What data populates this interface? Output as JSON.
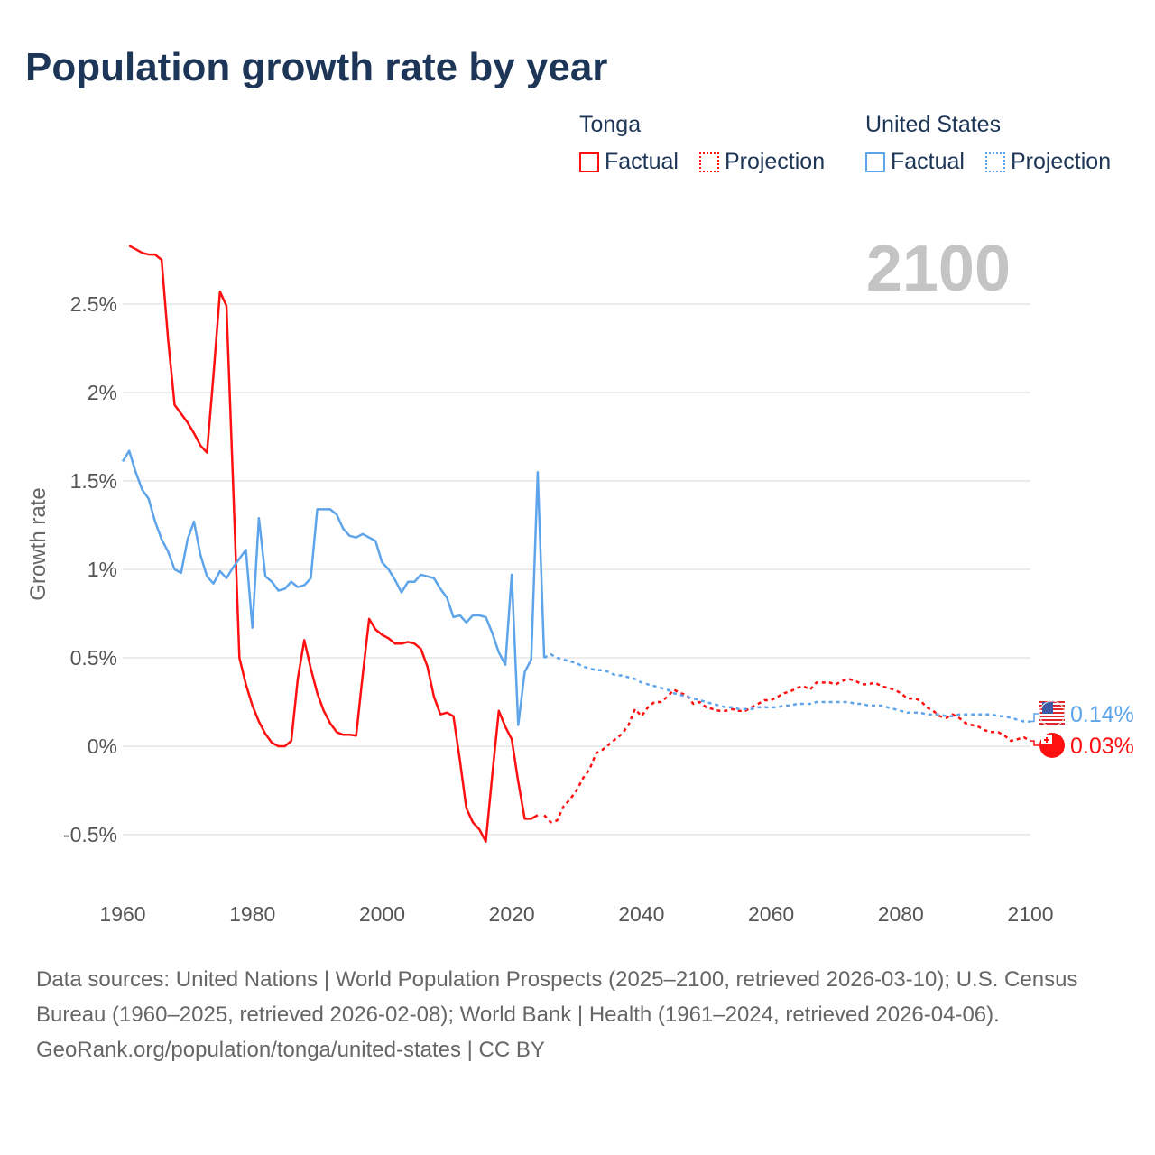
{
  "title": "Population growth rate by year",
  "legend": {
    "groups": [
      {
        "name": "Tonga",
        "color": "#ff1010",
        "factual": "Factual",
        "projection": "Projection"
      },
      {
        "name": "United States",
        "color": "#5ea4ea",
        "factual": "Factual",
        "projection": "Projection"
      }
    ]
  },
  "year_label": "2100",
  "footer": {
    "sources": "Data sources: United Nations | World Population Prospects (2025–2100, retrieved 2026-03-10); U.S. Census Bureau (1960–2025, retrieved 2026-02-08); World Bank | Health (1961–2024, retrieved 2026-04-06).",
    "credit": "GeoRank.org/population/tonga/united-states | CC BY"
  },
  "chart_data": {
    "type": "line",
    "title": "Population growth rate by year",
    "xlabel": "",
    "ylabel": "Growth rate",
    "xlim": [
      1960,
      2100
    ],
    "ylim": [
      -0.7,
      2.9
    ],
    "xticks": [
      1960,
      1980,
      2000,
      2020,
      2040,
      2060,
      2080,
      2100
    ],
    "yticks": [
      -0.5,
      0,
      0.5,
      1,
      1.5,
      2,
      2.5
    ],
    "ytick_labels": [
      "-0.5%",
      "0%",
      "0.5%",
      "1%",
      "1.5%",
      "2%",
      "2.5%"
    ],
    "grid": true,
    "legend_position": "top-right",
    "series": [
      {
        "name": "Tonga Factual",
        "country": "Tonga",
        "color": "#ff1010",
        "dashed": false,
        "x_start": 1961,
        "values": [
          2.83,
          2.81,
          2.79,
          2.78,
          2.78,
          2.75,
          2.3,
          1.93,
          1.88,
          1.83,
          1.77,
          1.7,
          1.66,
          2.1,
          2.57,
          2.49,
          1.5,
          0.5,
          0.35,
          0.23,
          0.14,
          0.07,
          0.02,
          0.0,
          0.0,
          0.03,
          0.38,
          0.6,
          0.44,
          0.3,
          0.2,
          0.13,
          0.08,
          0.065,
          0.065,
          0.06,
          0.4,
          0.72,
          0.66,
          0.63,
          0.61,
          0.58,
          0.58,
          0.59,
          0.58,
          0.55,
          0.45,
          0.28,
          0.18,
          0.19,
          0.17,
          -0.08,
          -0.35,
          -0.43,
          -0.47,
          -0.54,
          -0.16,
          0.2,
          0.11,
          0.04,
          -0.2,
          -0.41,
          -0.41,
          -0.39
        ]
      },
      {
        "name": "Tonga Projection",
        "country": "Tonga",
        "color": "#ff1010",
        "dashed": true,
        "x_start": 2025,
        "values": [
          -0.39,
          -0.43,
          -0.42,
          -0.34,
          -0.3,
          -0.25,
          -0.18,
          -0.13,
          -0.04,
          -0.02,
          0.01,
          0.04,
          0.07,
          0.12,
          0.21,
          0.17,
          0.22,
          0.25,
          0.25,
          0.28,
          0.32,
          0.3,
          0.29,
          0.24,
          0.25,
          0.22,
          0.21,
          0.2,
          0.2,
          0.21,
          0.2,
          0.2,
          0.22,
          0.24,
          0.26,
          0.26,
          0.28,
          0.3,
          0.31,
          0.33,
          0.34,
          0.32,
          0.36,
          0.36,
          0.36,
          0.35,
          0.37,
          0.38,
          0.37,
          0.35,
          0.35,
          0.36,
          0.34,
          0.33,
          0.32,
          0.3,
          0.27,
          0.27,
          0.26,
          0.22,
          0.2,
          0.17,
          0.16,
          0.18,
          0.16,
          0.13,
          0.12,
          0.11,
          0.09,
          0.08,
          0.08,
          0.06,
          0.03,
          0.04,
          0.05,
          0.03
        ]
      },
      {
        "name": "United States Factual",
        "country": "United States",
        "color": "#5ea4ea",
        "dashed": false,
        "x_start": 1960,
        "values": [
          1.61,
          1.67,
          1.55,
          1.45,
          1.4,
          1.27,
          1.17,
          1.1,
          1.0,
          0.98,
          1.17,
          1.27,
          1.08,
          0.96,
          0.92,
          0.99,
          0.95,
          1.01,
          1.06,
          1.11,
          0.67,
          1.29,
          0.96,
          0.93,
          0.88,
          0.89,
          0.93,
          0.9,
          0.91,
          0.95,
          1.34,
          1.34,
          1.34,
          1.31,
          1.23,
          1.19,
          1.18,
          1.2,
          1.18,
          1.16,
          1.04,
          1.0,
          0.94,
          0.87,
          0.93,
          0.93,
          0.97,
          0.96,
          0.95,
          0.89,
          0.84,
          0.73,
          0.74,
          0.7,
          0.74,
          0.74,
          0.73,
          0.64,
          0.53,
          0.46,
          0.97,
          0.12,
          0.42,
          0.49,
          1.55,
          0.5
        ]
      },
      {
        "name": "United States Projection",
        "country": "United States",
        "color": "#5ea4ea",
        "dashed": true,
        "x_start": 2025,
        "values": [
          0.5,
          0.52,
          0.5,
          0.49,
          0.48,
          0.47,
          0.45,
          0.44,
          0.43,
          0.43,
          0.42,
          0.4,
          0.4,
          0.39,
          0.38,
          0.36,
          0.35,
          0.34,
          0.33,
          0.32,
          0.3,
          0.29,
          0.28,
          0.27,
          0.26,
          0.25,
          0.24,
          0.23,
          0.22,
          0.22,
          0.21,
          0.21,
          0.21,
          0.22,
          0.22,
          0.22,
          0.22,
          0.23,
          0.23,
          0.24,
          0.24,
          0.24,
          0.25,
          0.25,
          0.25,
          0.25,
          0.25,
          0.25,
          0.24,
          0.24,
          0.23,
          0.23,
          0.23,
          0.22,
          0.21,
          0.2,
          0.19,
          0.19,
          0.19,
          0.18,
          0.18,
          0.18,
          0.17,
          0.17,
          0.18,
          0.18,
          0.18,
          0.18,
          0.18,
          0.18,
          0.17,
          0.17,
          0.16,
          0.15,
          0.14,
          0.14
        ]
      }
    ],
    "end_labels": [
      {
        "country": "United States",
        "label": "0.14%",
        "value": 0.14,
        "color": "#5ea4ea"
      },
      {
        "country": "Tonga",
        "label": "0.03%",
        "value": 0.03,
        "color": "#ff1010"
      }
    ]
  }
}
